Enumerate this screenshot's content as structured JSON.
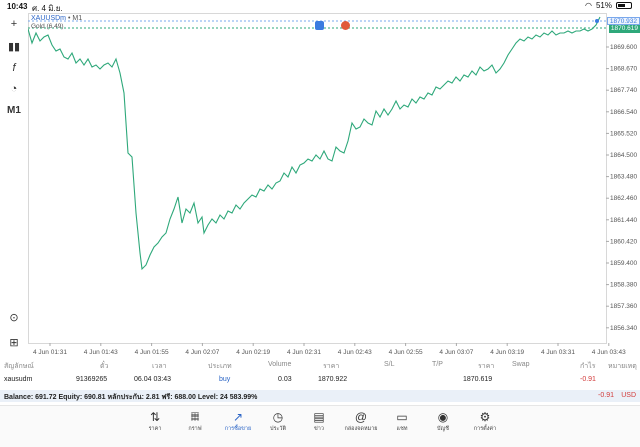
{
  "status": {
    "time": "10:43",
    "date": "ศ. 4 มิ.ย.",
    "battery": "51%",
    "battery_level": 0.51
  },
  "toolbar": {
    "crosshair": "+",
    "candles": "▮▮",
    "indicator": "f",
    "objects": "◔",
    "timeframe": "M1",
    "zoom": "⊙",
    "add": "⊞"
  },
  "chart": {
    "symbol": "XAUUSDm",
    "timeframe": "M1",
    "subtitle": "Gold (6.49)",
    "ask_price": "1870.932",
    "bid_price": "1870.619",
    "price_scale": [
      "1869.600",
      "1868.670",
      "1867.740",
      "1866.540",
      "1865.520",
      "1864.500",
      "1863.480",
      "1862.460",
      "1861.440",
      "1860.420",
      "1859.400",
      "1858.380",
      "1857.360",
      "1856.340"
    ],
    "time_axis": [
      "4 Jun 01:31",
      "4 Jun 01:43",
      "4 Jun 01:55",
      "4 Jun 02:07",
      "4 Jun 02:19",
      "4 Jun 02:31",
      "4 Jun 02:43",
      "4 Jun 02:55",
      "4 Jun 03:07",
      "4 Jun 03:19",
      "4 Jun 03:31",
      "4 Jun 03:43"
    ],
    "line_color": "#2ea87a"
  },
  "table": {
    "headers": [
      "สัญลักษณ์",
      "ตั๋ว",
      "เวลา",
      "ประเภท",
      "Volume",
      "ราคา",
      "S/L",
      "T/P",
      "ราคา",
      "Swap",
      "กำไร",
      "หมายเหตุ"
    ],
    "row": {
      "symbol": "xausudm",
      "ticket": "91369265",
      "time": "06.04 03:43",
      "type": "buy",
      "volume": "0.03",
      "open_price": "1870.922",
      "current_price": "1870.619",
      "profit": "-0.91"
    }
  },
  "balance": {
    "text": "Balance: 691.72 Equity: 690.81 หลักประกัน: 2.81 ฟรี: 688.00 Level: 24 583.99%",
    "profit": "-0.91",
    "currency": "USD"
  },
  "nav": [
    {
      "label": "ราคา",
      "icon": "⇅"
    },
    {
      "label": "กราฟ",
      "icon": "𝄜"
    },
    {
      "label": "การซื้อขาย",
      "icon": "↗"
    },
    {
      "label": "ประวัติ",
      "icon": "◷"
    },
    {
      "label": "ข่าว",
      "icon": "▤"
    },
    {
      "label": "กล่องจดหมาย",
      "icon": "@"
    },
    {
      "label": "แชท",
      "icon": "▭"
    },
    {
      "label": "บัญชี",
      "icon": "◉"
    },
    {
      "label": "การตั้งค่า",
      "icon": "⚙"
    }
  ]
}
